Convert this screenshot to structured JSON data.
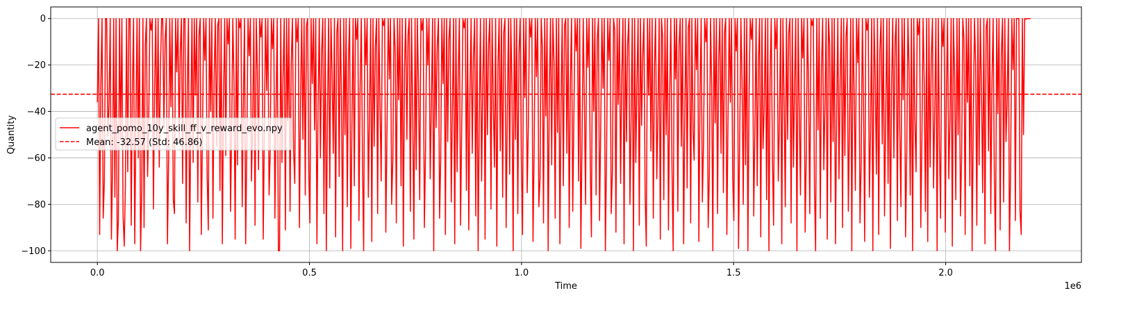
{
  "chart_data": {
    "type": "line",
    "title": "",
    "xlabel": "Time",
    "ylabel": "Quantity",
    "x_offset_text": "1e6",
    "xlim": [
      -0.11,
      2.32
    ],
    "ylim": [
      -105,
      5
    ],
    "x_ticks": [
      0.0,
      0.5,
      1.0,
      1.5,
      2.0
    ],
    "x_tick_labels": [
      "0.0",
      "0.5",
      "1.0",
      "1.5",
      "2.0"
    ],
    "y_ticks": [
      0,
      -20,
      -40,
      -60,
      -80,
      -100
    ],
    "y_tick_labels": [
      "0",
      "−20",
      "−40",
      "−60",
      "−80",
      "−100"
    ],
    "grid": true,
    "legend_position": "center-left",
    "series": [
      {
        "name": "agent_pomo_10y_skill_ff_v_reward_evo.npy",
        "color": "#ff0000",
        "style": "solid",
        "x_start": 0.0,
        "x_end": 2.2,
        "values": [
          -36,
          0,
          -93,
          -29,
          0,
          -86,
          -70,
          0,
          0,
          -51,
          -37,
          0,
          -95,
          -65,
          0,
          -77,
          0,
          -100,
          -87,
          0,
          -52,
          0,
          -85,
          -98,
          -72,
          0,
          -66,
          0,
          0,
          -89,
          -31,
          0,
          -97,
          -43,
          0,
          -60,
          0,
          -100,
          -74,
          0,
          -90,
          -12,
          0,
          -68,
          -42,
          0,
          -5,
          0,
          -82,
          -30,
          0,
          -56,
          0,
          -64,
          -21,
          0,
          0,
          -47,
          -9,
          0,
          -97,
          -61,
          0,
          -38,
          0,
          -78,
          -84,
          0,
          -23,
          0,
          -53,
          -14,
          0,
          -71,
          0,
          0,
          -88,
          -29,
          0,
          -100,
          -45,
          0,
          -62,
          0,
          -33,
          0,
          -79,
          -7,
          0,
          -93,
          -51,
          0,
          -18,
          0,
          -67,
          -91,
          0,
          -40,
          0,
          -86,
          -26,
          0,
          -55,
          -3,
          0,
          -74,
          0,
          -97,
          -35,
          0,
          -59,
          0,
          -11,
          0,
          -83,
          -48,
          0,
          -27,
          -95,
          0,
          -63,
          0,
          -4,
          0,
          -81,
          -36,
          0,
          -97,
          -54,
          0,
          -16,
          0,
          -70,
          -43,
          0,
          -89,
          0,
          -22,
          -65,
          0,
          -8,
          0,
          -95,
          -49,
          0,
          -31,
          0,
          -76,
          -58,
          0,
          -13,
          0,
          -86,
          -39,
          0,
          -100,
          -100,
          0,
          -62,
          -25,
          0,
          -91,
          0,
          -44,
          0,
          -83,
          -19,
          0,
          -57,
          -71,
          0,
          -10,
          0,
          -90,
          -34,
          0,
          -52,
          0,
          -76,
          -3,
          0,
          -66,
          -88,
          0,
          -28,
          0,
          -48,
          0,
          -97,
          -37,
          0,
          -60,
          -15,
          0,
          -84,
          0,
          -100,
          -42,
          0,
          -73,
          0,
          -24,
          -58,
          0,
          -94,
          -6,
          0,
          -68,
          0,
          -33,
          -100,
          0,
          -50,
          0,
          -81,
          -18,
          0,
          -99,
          -45,
          0,
          -72,
          0,
          -9,
          0,
          -87,
          -30,
          0,
          -62,
          -100,
          0,
          -20,
          0,
          -77,
          -40,
          0,
          -96,
          0,
          -55,
          -12,
          0,
          -84,
          0,
          -37,
          -70,
          0,
          -3,
          0,
          -92,
          -48,
          0,
          -26,
          0,
          -80,
          -60,
          0,
          -14,
          -88,
          0,
          -35,
          0,
          -72,
          0,
          -98,
          -22,
          0,
          -52,
          -7,
          0,
          -83,
          0,
          -41,
          -95,
          0,
          -65,
          0,
          -30,
          -78,
          0,
          -5,
          0,
          -90,
          -57,
          0,
          -20,
          0,
          -69,
          -36,
          0,
          -100,
          0,
          -47,
          -12,
          0,
          -86,
          -61,
          0,
          -28,
          0,
          -93,
          0,
          -53,
          -9,
          0,
          -79,
          -38,
          0,
          -97,
          0,
          -66,
          -23,
          0,
          -89,
          -45,
          0,
          -4,
          0,
          -74,
          0,
          -91,
          -32,
          0,
          -58,
          -17,
          0,
          -85,
          0,
          -100,
          -43,
          0,
          -70,
          -27,
          0,
          -95,
          0,
          -50,
          -11,
          0,
          -82,
          0,
          -36,
          -64,
          0,
          -98,
          -21,
          0,
          -57,
          0,
          -77,
          -6,
          0,
          -90,
          -40,
          0,
          -67,
          0,
          -29,
          -100,
          0,
          -52,
          0,
          -84,
          -15,
          0,
          -61,
          -93,
          0,
          -34,
          0,
          -75,
          -46,
          0,
          -8,
          0,
          -96,
          -55,
          0,
          -25,
          0,
          -81,
          -69,
          0,
          -12,
          -88,
          0,
          -42,
          0,
          -100,
          -31,
          0,
          -63,
          0,
          -19,
          -86,
          0,
          -49,
          0,
          -97,
          -38,
          0,
          -72,
          -3,
          0,
          -58,
          0,
          -90,
          -27,
          0,
          -83,
          -44,
          0,
          -14,
          0,
          -70,
          0,
          -99,
          -52,
          0,
          -36,
          -80,
          0,
          -21,
          0,
          -62,
          -94,
          0,
          -40,
          0,
          -76,
          -9,
          0,
          -87,
          -47,
          0,
          -30,
          0,
          -100,
          -59,
          0,
          -18,
          0,
          -84,
          -66,
          0,
          -5,
          -92,
          0,
          -37,
          0,
          -71,
          -24,
          0,
          -97,
          0,
          -53,
          -11,
          0,
          -80,
          -43,
          0,
          -100,
          0,
          -62,
          -28,
          0,
          -89,
          0,
          -46,
          -16,
          0,
          -75,
          -98,
          0,
          -33,
          0,
          -57,
          0,
          -86,
          -20,
          0,
          -69,
          -41,
          0,
          -95,
          0,
          -8,
          -78,
          0,
          -50,
          0,
          -91,
          -35,
          0,
          -64,
          -100,
          0,
          -26,
          0,
          -83,
          -12,
          0,
          -55,
          0,
          -97,
          -39,
          0,
          -73,
          -4,
          0,
          -88,
          0,
          -48,
          -61,
          0,
          -22,
          0,
          -96,
          -33,
          0,
          -79,
          -54,
          0,
          -10,
          0,
          -90,
          -67,
          0,
          -30,
          -100,
          0,
          -45,
          0,
          -84,
          -18,
          0,
          -58,
          0,
          -75,
          -6,
          0,
          -93,
          -42,
          0,
          -36,
          0,
          -68,
          -87,
          0,
          -14,
          0,
          -99,
          -51,
          0,
          -27,
          -80,
          0,
          -63,
          0,
          -100,
          -32,
          0,
          -9,
          0,
          -85,
          -47,
          0,
          -72,
          -20,
          0,
          -94,
          0,
          -56,
          -38,
          0,
          -78,
          0,
          -100,
          -25,
          0,
          -60,
          -89,
          0,
          -13,
          0,
          -70,
          -44,
          0,
          -97,
          0,
          -34,
          -81,
          0,
          -52,
          -6,
          0,
          -88,
          0,
          -64,
          -29,
          0,
          -100,
          0,
          -41,
          -76,
          0,
          -17,
          0,
          -92,
          -57,
          0,
          -31,
          -84,
          0,
          -3,
          0,
          -73,
          -100,
          0,
          -48,
          0,
          -86,
          -22,
          0,
          -65,
          -36,
          0,
          -95,
          0,
          -11,
          -79,
          0,
          -53,
          0,
          -97,
          -40,
          0,
          -69,
          -27,
          0,
          -90,
          0,
          -59,
          -8,
          0,
          -83,
          -45,
          0,
          -100,
          0,
          -32,
          -74,
          0,
          -19,
          0,
          -88,
          -62,
          0,
          -38,
          -96,
          0,
          -5,
          0,
          -77,
          -50,
          0,
          -100,
          0,
          -25,
          -67,
          0,
          -93,
          -14,
          0,
          -54,
          0,
          -85,
          -42,
          0,
          -71,
          0,
          -99,
          -30,
          0,
          -60,
          -10,
          0,
          -87,
          0,
          -47,
          -81,
          0,
          -35,
          0,
          -94,
          -58,
          0,
          -21,
          -76,
          0,
          -100,
          0,
          -43,
          -66,
          0,
          -7,
          0,
          -90,
          -52,
          0,
          -28,
          -83,
          0,
          -96,
          0,
          -64,
          -17,
          0,
          -73,
          -39,
          0,
          -100,
          0,
          -55,
          -86,
          0,
          -12,
          0,
          -92,
          -33,
          0,
          -69,
          -44,
          0,
          -98,
          0,
          -24,
          -78,
          0,
          -50,
          0,
          -85,
          -60,
          0,
          -9,
          -93,
          0,
          -36,
          0,
          -72,
          0,
          -100,
          -46,
          0,
          -20,
          -89,
          0,
          -63,
          0,
          -31,
          -75,
          0,
          -97,
          -4,
          0,
          -57,
          0,
          -84,
          -27,
          0,
          -68,
          -100,
          0,
          -41,
          0,
          -91,
          -15,
          0,
          -79,
          0,
          -53,
          -35,
          0,
          -100,
          -62,
          0,
          -22,
          0,
          -87,
          0,
          0,
          0,
          -83,
          -93,
          0,
          -50,
          0,
          -0.3,
          0,
          0,
          0,
          0
        ]
      },
      {
        "name": "Mean: -32.57 (Std: 46.86)",
        "color": "#ff0000",
        "style": "dashed",
        "constant": -32.57
      }
    ]
  }
}
